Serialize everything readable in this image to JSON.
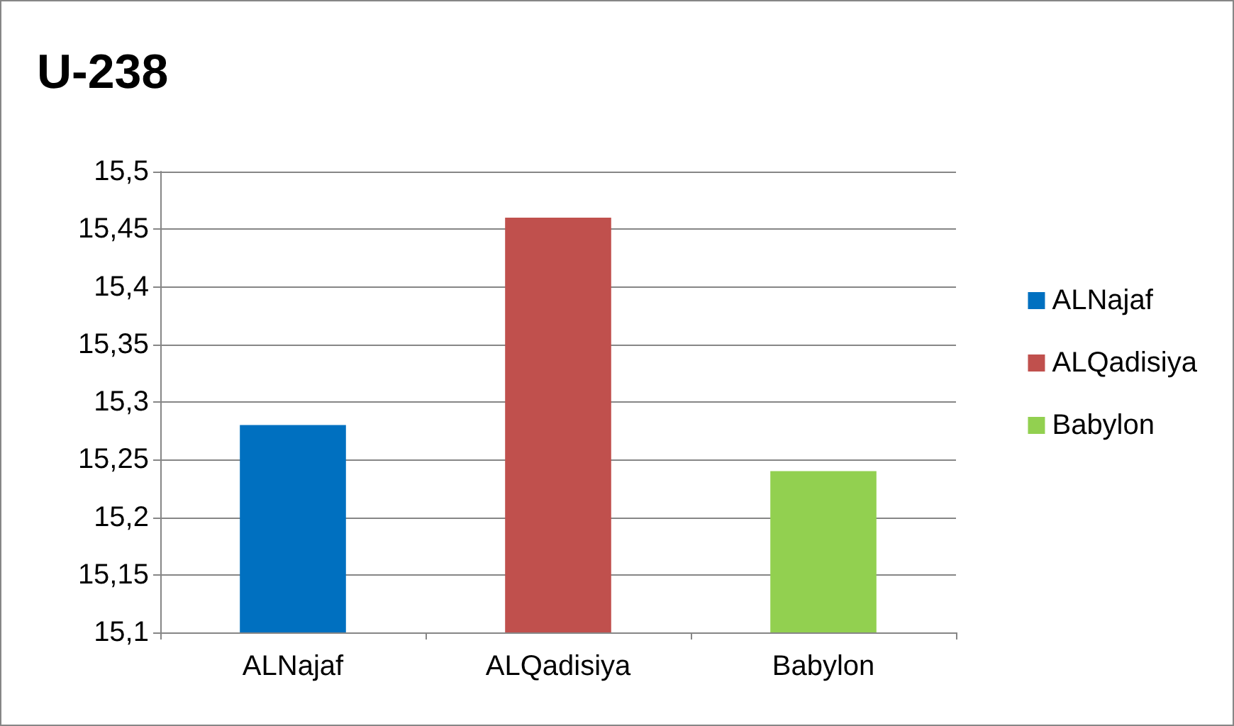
{
  "chart_data": {
    "type": "bar",
    "title": "U-238",
    "categories": [
      "ALNajaf",
      "ALQadisiya",
      "Babylon"
    ],
    "series": [
      {
        "name": "ALNajaf",
        "color": "#0070c0",
        "values": [
          15.28,
          null,
          null
        ]
      },
      {
        "name": "ALQadisiya",
        "color": "#c0504d",
        "values": [
          null,
          15.46,
          null
        ]
      },
      {
        "name": "Babylon",
        "color": "#92d050",
        "values": [
          null,
          null,
          15.24
        ]
      }
    ],
    "ylim": [
      15.1,
      15.5
    ],
    "yticks": [
      {
        "value": 15.1,
        "label": "15,1"
      },
      {
        "value": 15.15,
        "label": "15,15"
      },
      {
        "value": 15.2,
        "label": "15,2"
      },
      {
        "value": 15.25,
        "label": "15,25"
      },
      {
        "value": 15.3,
        "label": "15,3"
      },
      {
        "value": 15.35,
        "label": "15,35"
      },
      {
        "value": 15.4,
        "label": "15,4"
      },
      {
        "value": 15.45,
        "label": "15,45"
      },
      {
        "value": 15.5,
        "label": "15,5"
      }
    ],
    "grid": true,
    "legend": "right"
  }
}
